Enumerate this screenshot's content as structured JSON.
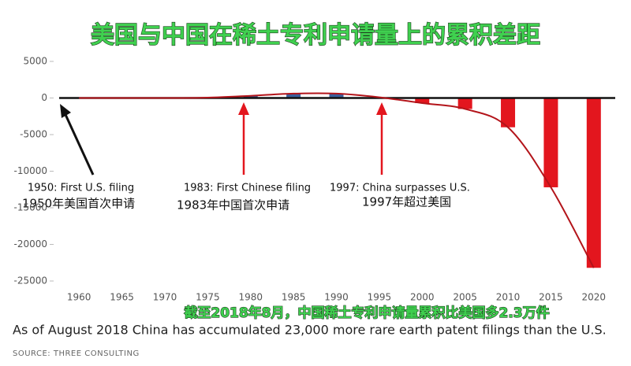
{
  "chart_data": {
    "type": "bar",
    "title": "美国与中国在稀土专利申请量上的累积差距",
    "subtitle": "截至2018年8月，中国稀土专利申请量累积比美国多2.3万件",
    "caption": "As of August 2018 China has accumulated 23,000 more rare earth patent filings than the U.S.",
    "source": "SOURCE: THREE CONSULTING",
    "annotations": [
      "1950: First U.S. filing",
      "1950年美国首次申请",
      "1983: First Chinese filing",
      "1983年中国首次申请",
      "1997: China surpasses U.S.",
      "1997年超过美国"
    ],
    "categories": [
      "1960",
      "1965",
      "1970",
      "1975",
      "1980",
      "1985",
      "1990",
      "1995",
      "2000",
      "2005",
      "2010",
      "2015",
      "2020"
    ],
    "values": [
      0,
      0,
      0,
      50,
      300,
      600,
      600,
      100,
      -700,
      -1500,
      -4000,
      -12200,
      -23200
    ],
    "colors": [
      "#3a5f9c",
      "#3a5f9c",
      "#3a5f9c",
      "#3a5f9c",
      "#3a5f9c",
      "#3a5f9c",
      "#3a5f9c",
      "#3a5f9c",
      "#e3161e",
      "#e3161e",
      "#e3161e",
      "#e3161e",
      "#e3161e"
    ],
    "line_color": "#b3141a",
    "ylim": [
      -25000,
      5000
    ],
    "yticks": [
      5000,
      0,
      -5000,
      -10000,
      -15000,
      -20000,
      -25000
    ]
  }
}
